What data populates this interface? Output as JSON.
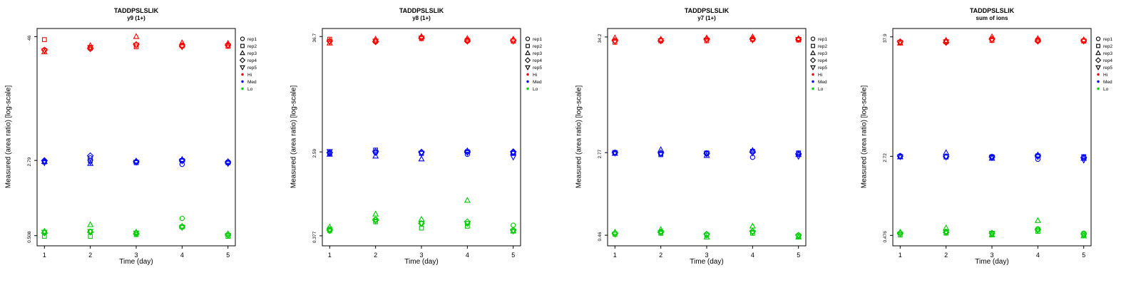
{
  "figure": {
    "background": "#ffffff",
    "axis_color": "#000000",
    "rep_shapes": [
      "circle",
      "square",
      "triangle-up",
      "diamond",
      "triangle-down"
    ],
    "group_colors": {
      "Hi": "#FF0000",
      "Med": "#0000FF",
      "Lo": "#00CC00"
    }
  },
  "chart_data": [
    {
      "type": "scatter",
      "title": "TADDPSLSLIK",
      "subtitle": "y9 (1+)",
      "xlabel": "Time (day)",
      "ylabel": "Measured (area ratio) [log-scale]",
      "y_scale": "log",
      "x_ticks": [
        1,
        2,
        3,
        4,
        5
      ],
      "y_ticks": [
        0.508,
        2.79,
        46
      ],
      "y_tick_labels": [
        "0.508",
        "2.79",
        "46"
      ],
      "legend": {
        "reps": [
          "rep1",
          "rep2",
          "rep3",
          "rep4",
          "rep5"
        ],
        "groups": [
          "Hi",
          "Med",
          "Lo"
        ]
      },
      "groups": [
        {
          "name": "Hi",
          "color": "#FF0000",
          "values": [
            [
              34,
              43,
              32.5,
              34,
              33.5
            ],
            [
              36,
              35.5,
              37.5,
              35,
              36
            ],
            [
              38,
              36.5,
              46,
              38.5,
              38
            ],
            [
              38,
              37.5,
              40,
              37,
              36.5
            ],
            [
              38,
              37,
              39.5,
              38,
              37.5
            ]
          ]
        },
        {
          "name": "Med",
          "color": "#0000FF",
          "values": [
            [
              2.75,
              2.7,
              2.72,
              2.78,
              2.65
            ],
            [
              2.95,
              2.78,
              2.6,
              3.1,
              2.7
            ],
            [
              2.7,
              2.65,
              2.75,
              2.72,
              2.68
            ],
            [
              2.55,
              2.78,
              2.85,
              2.8,
              2.75
            ],
            [
              2.7,
              2.65,
              2.72,
              2.68,
              2.6
            ]
          ]
        },
        {
          "name": "Lo",
          "color": "#00CC00",
          "values": [
            [
              0.55,
              0.5,
              0.56,
              0.54,
              0.55
            ],
            [
              0.56,
              0.5,
              0.65,
              0.55,
              0.56
            ],
            [
              0.54,
              0.52,
              0.55,
              0.53,
              0.54
            ],
            [
              0.75,
              0.62,
              0.63,
              0.62,
              0.61
            ],
            [
              0.52,
              0.5,
              0.53,
              0.52,
              0.51
            ]
          ]
        }
      ]
    },
    {
      "type": "scatter",
      "title": "TADDPSLSLIK",
      "subtitle": "y8 (1+)",
      "xlabel": "Time (day)",
      "ylabel": "Measured (area ratio) [log-scale]",
      "y_scale": "log",
      "x_ticks": [
        1,
        2,
        3,
        4,
        5
      ],
      "y_ticks": [
        0.377,
        2.59,
        36.7
      ],
      "y_tick_labels": [
        "0.377",
        "2.59",
        "36.7"
      ],
      "legend": {
        "reps": [
          "rep1",
          "rep2",
          "rep3",
          "rep4",
          "rep5"
        ],
        "groups": [
          "Hi",
          "Med",
          "Lo"
        ]
      },
      "groups": [
        {
          "name": "Hi",
          "color": "#FF0000",
          "values": [
            [
              33,
              34.5,
              31.5,
              33,
              32.5
            ],
            [
              33.5,
              33,
              34.5,
              32.5,
              33
            ],
            [
              36,
              35,
              36.7,
              35.5,
              35.5
            ],
            [
              34,
              33.5,
              35,
              33,
              33
            ],
            [
              33.5,
              33,
              34.5,
              33.5,
              33
            ]
          ]
        },
        {
          "name": "Med",
          "color": "#0000FF",
          "values": [
            [
              2.5,
              2.55,
              2.45,
              2.55,
              2.62
            ],
            [
              2.55,
              2.7,
              2.35,
              2.6,
              2.55
            ],
            [
              2.55,
              2.5,
              2.2,
              2.58,
              2.52
            ],
            [
              2.45,
              2.6,
              2.65,
              2.6,
              2.55
            ],
            [
              2.55,
              2.5,
              2.58,
              2.6,
              2.3
            ]
          ]
        },
        {
          "name": "Lo",
          "color": "#00CC00",
          "values": [
            [
              0.42,
              0.44,
              0.46,
              0.43,
              0.43
            ],
            [
              0.55,
              0.52,
              0.62,
              0.54,
              0.53
            ],
            [
              0.5,
              0.45,
              0.55,
              0.5,
              0.5
            ],
            [
              0.5,
              0.47,
              0.85,
              0.52,
              0.5
            ],
            [
              0.48,
              0.42,
              0.42,
              0.43,
              0.42
            ]
          ]
        }
      ]
    },
    {
      "type": "scatter",
      "title": "TADDPSLSLIK",
      "subtitle": "y7 (1+)",
      "xlabel": "Time (day)",
      "ylabel": "Measured (area ratio) [log-scale]",
      "y_scale": "log",
      "x_ticks": [
        1,
        2,
        3,
        4,
        5
      ],
      "y_ticks": [
        0.46,
        2.77,
        34.2
      ],
      "y_tick_labels": [
        "0.46",
        "2.77",
        "34.2"
      ],
      "legend": {
        "reps": [
          "rep1",
          "rep2",
          "rep3",
          "rep4",
          "rep5"
        ],
        "groups": [
          "Hi",
          "Med",
          "Lo"
        ]
      },
      "groups": [
        {
          "name": "Hi",
          "color": "#FF0000",
          "values": [
            [
              31.5,
              30.5,
              33.5,
              31.5,
              31
            ],
            [
              32,
              31.5,
              32.5,
              31.5,
              31.5
            ],
            [
              32.5,
              31.5,
              33.5,
              32.5,
              32
            ],
            [
              33,
              32.5,
              34.2,
              32.5,
              32
            ],
            [
              32.5,
              32,
              33,
              32.5,
              32.5
            ]
          ]
        },
        {
          "name": "Med",
          "color": "#0000FF",
          "values": [
            [
              2.75,
              2.78,
              2.72,
              2.76,
              2.74
            ],
            [
              2.7,
              2.65,
              2.95,
              2.75,
              2.7
            ],
            [
              2.7,
              2.75,
              2.6,
              2.72,
              2.7
            ],
            [
              2.5,
              2.85,
              2.9,
              2.8,
              2.75
            ],
            [
              2.7,
              2.75,
              2.65,
              2.7,
              2.55
            ]
          ]
        },
        {
          "name": "Lo",
          "color": "#00CC00",
          "values": [
            [
              0.48,
              0.47,
              0.49,
              0.48,
              0.47
            ],
            [
              0.5,
              0.48,
              0.52,
              0.49,
              0.49
            ],
            [
              0.47,
              0.46,
              0.44,
              0.47,
              0.46
            ],
            [
              0.5,
              0.48,
              0.56,
              0.5,
              0.49
            ],
            [
              0.46,
              0.45,
              0.44,
              0.46,
              0.45
            ]
          ]
        }
      ]
    },
    {
      "type": "scatter",
      "title": "TADDPSLSLIK",
      "subtitle": "sum of ions",
      "xlabel": "Time (day)",
      "ylabel": "Measured (area ratio) [log-scale]",
      "y_scale": "log",
      "x_ticks": [
        1,
        2,
        3,
        4,
        5
      ],
      "y_ticks": [
        0.476,
        2.72,
        37.9
      ],
      "y_tick_labels": [
        "0.476",
        "2.72",
        "37.9"
      ],
      "legend": {
        "reps": [
          "rep1",
          "rep2",
          "rep3",
          "rep4",
          "rep5"
        ],
        "groups": [
          "Hi",
          "Med",
          "Lo"
        ]
      },
      "groups": [
        {
          "name": "Hi",
          "color": "#FF0000",
          "values": [
            [
              34,
              33.5,
              33,
              34,
              33.5
            ],
            [
              34.5,
              34,
              35,
              33.5,
              34
            ],
            [
              36,
              35,
              37.9,
              36,
              35.5
            ],
            [
              35.5,
              35,
              36.5,
              34.5,
              34.5
            ],
            [
              35,
              34.5,
              35.5,
              35,
              34.5
            ]
          ]
        },
        {
          "name": "Med",
          "color": "#0000FF",
          "values": [
            [
              2.75,
              2.7,
              2.68,
              2.73,
              2.7
            ],
            [
              2.72,
              2.68,
              2.95,
              2.7,
              2.68
            ],
            [
              2.65,
              2.7,
              2.6,
              2.68,
              2.65
            ],
            [
              2.55,
              2.75,
              2.8,
              2.75,
              2.7
            ],
            [
              2.65,
              2.7,
              2.6,
              2.65,
              2.5
            ]
          ]
        },
        {
          "name": "Lo",
          "color": "#00CC00",
          "values": [
            [
              0.5,
              0.48,
              0.51,
              0.5,
              0.49
            ],
            [
              0.52,
              0.5,
              0.56,
              0.51,
              0.51
            ],
            [
              0.5,
              0.49,
              0.48,
              0.5,
              0.5
            ],
            [
              0.55,
              0.52,
              0.66,
              0.54,
              0.53
            ],
            [
              0.5,
              0.48,
              0.47,
              0.49,
              0.48
            ]
          ]
        }
      ]
    }
  ]
}
